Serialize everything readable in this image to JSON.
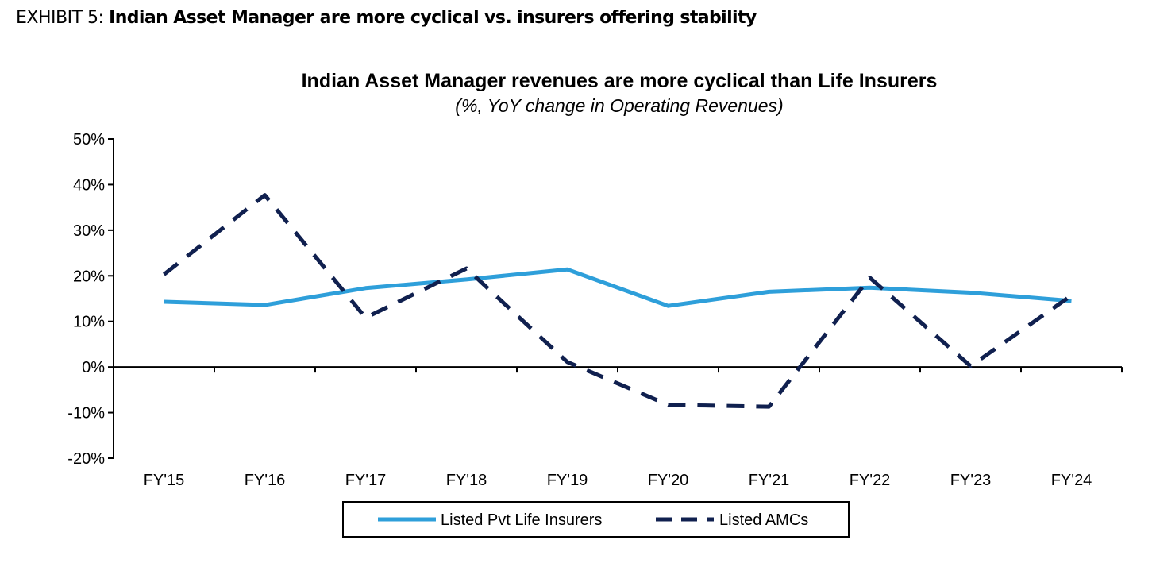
{
  "header": {
    "exhibit_label": "EXHIBIT 5:",
    "headline": "Indian Asset Manager are more cyclical vs. insurers offering stability"
  },
  "chart_data": {
    "type": "line",
    "title": "Indian Asset Manager revenues are more cyclical than Life Insurers",
    "subtitle": "(%, YoY change in Operating Revenues)",
    "xlabel": "",
    "ylabel": "",
    "categories": [
      "FY'15",
      "FY'16",
      "FY'17",
      "FY'18",
      "FY'19",
      "FY'20",
      "FY'21",
      "FY'22",
      "FY'23",
      "FY'24"
    ],
    "ylim": [
      -20,
      50
    ],
    "yticks": [
      -20,
      -10,
      0,
      10,
      20,
      30,
      40,
      50
    ],
    "ytick_labels": [
      "-20%",
      "-10%",
      "0%",
      "10%",
      "20%",
      "30%",
      "40%",
      "50%"
    ],
    "grid": false,
    "legend": "bottom",
    "series": [
      {
        "name": "Listed Pvt Life Insurers",
        "style": "solid",
        "color": "#2e9fda",
        "values": [
          14.3,
          13.6,
          17.3,
          19.2,
          21.4,
          13.4,
          16.5,
          17.4,
          16.3,
          14.5
        ]
      },
      {
        "name": "Listed AMCs",
        "style": "dashed",
        "color": "#10204f",
        "values": [
          20.3,
          37.7,
          10.8,
          21.6,
          1.1,
          -8.3,
          -8.7,
          19.6,
          0.2,
          15.7
        ]
      }
    ]
  }
}
